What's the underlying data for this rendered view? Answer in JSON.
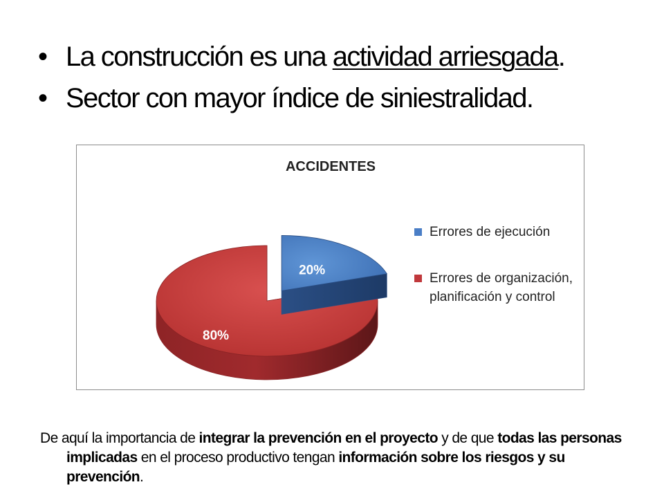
{
  "bullets": [
    {
      "pre": "La construcción es una ",
      "underlined": "actividad arriesgada",
      "post": "."
    },
    {
      "pre": "Sector con mayor índice de siniestralidad.",
      "underlined": "",
      "post": ""
    }
  ],
  "bullet_char": "•",
  "chart_data": {
    "type": "pie",
    "title": "ACCIDENTES",
    "three_d": true,
    "exploded": true,
    "legend_position": "right",
    "series": [
      {
        "name": "Errores de ejecución",
        "value": 20,
        "label": "20%",
        "color": "#4a7ec6"
      },
      {
        "name": "Errores de organización, planificación y control",
        "value": 80,
        "label": "80%",
        "color": "#c0383c"
      }
    ],
    "legend": [
      "Errores de ejecución",
      "Errores de organización, planificación y control"
    ]
  },
  "footer": {
    "segments": [
      {
        "text": "De aquí la importancia  de ",
        "bold": false
      },
      {
        "text": "integrar  la prevención en el proyecto",
        "bold": true
      },
      {
        "text": " y de que ",
        "bold": false
      },
      {
        "text": "todas las personas  implicadas",
        "bold": true
      },
      {
        "text": " en el proceso productivo  tengan ",
        "bold": false
      },
      {
        "text": "información sobre los riesgos y su prevención",
        "bold": true
      },
      {
        "text": ".",
        "bold": false
      }
    ]
  }
}
